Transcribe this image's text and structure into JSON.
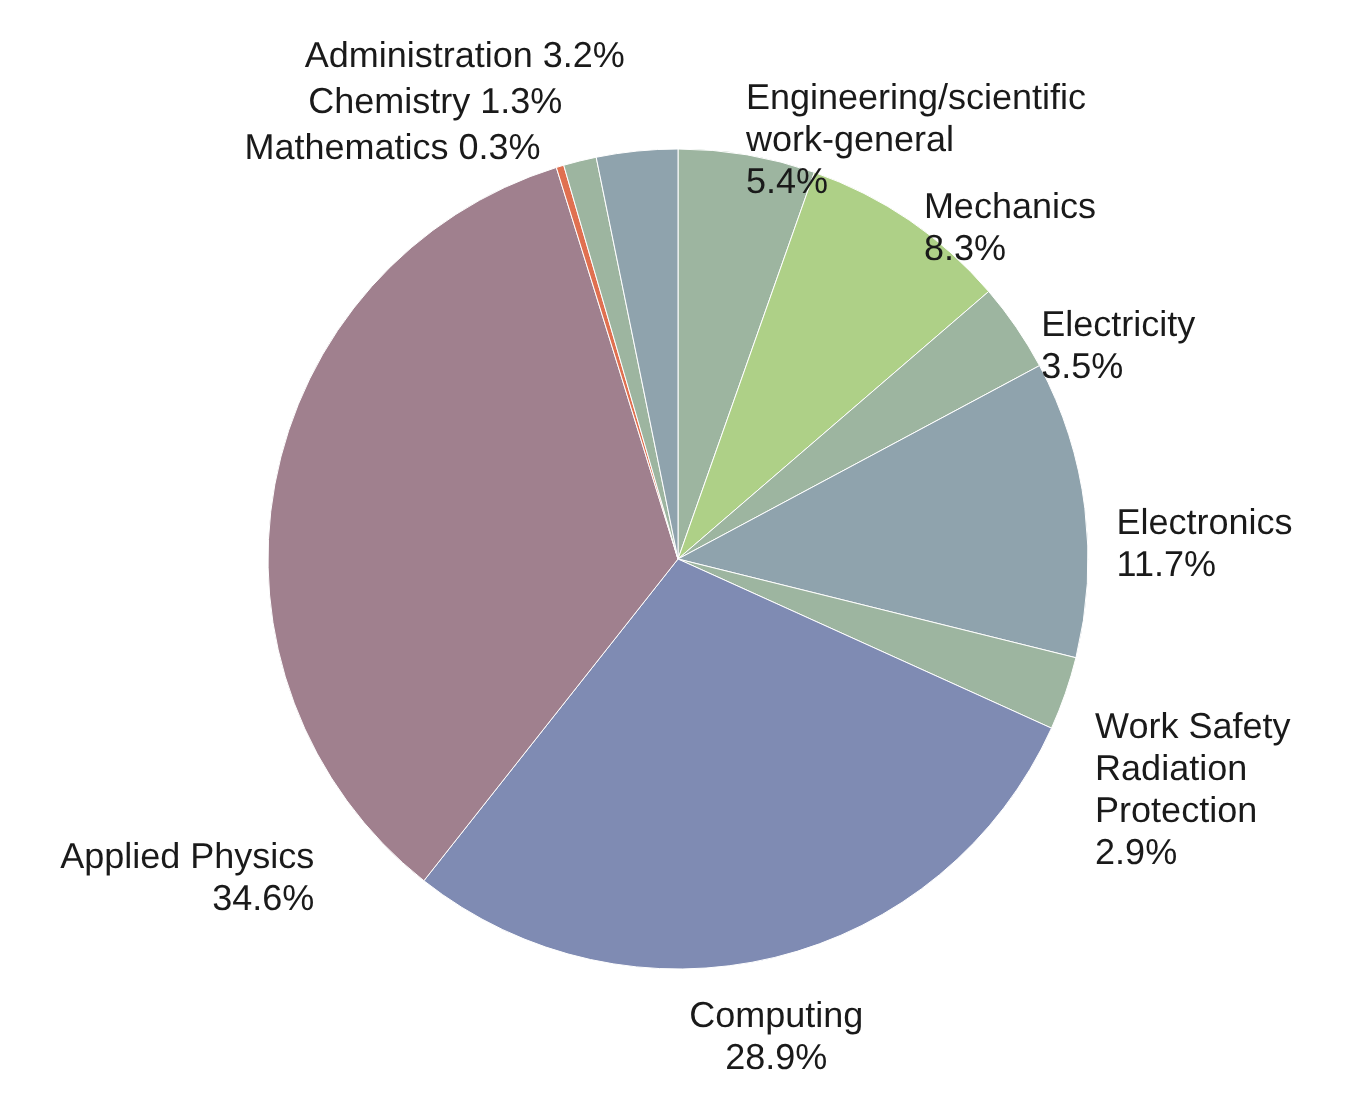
{
  "chart_data": {
    "type": "pie",
    "categories": [
      "Engineering/scientific work-general",
      "Mechanics",
      "Electricity",
      "Electronics",
      "Work Safety Radiation Protection",
      "Computing",
      "Applied Physics",
      "Mathematics",
      "Chemistry",
      "Administration"
    ],
    "values": [
      5.4,
      8.3,
      3.5,
      11.7,
      2.9,
      28.9,
      34.6,
      0.3,
      1.3,
      3.2
    ],
    "value_labels": [
      "5.4%",
      "8.3%",
      "3.5%",
      "11.7%",
      "2.9%",
      "28.9%",
      "34.6%",
      "0.3%",
      "1.3%",
      "3.2%"
    ],
    "colors": [
      "#9db5a0",
      "#aed087",
      "#9db5a0",
      "#8fa3ad",
      "#9db5a0",
      "#7f8bb3",
      "#a0808e",
      "#e07050",
      "#9db5a0",
      "#8fa3ad"
    ]
  }
}
